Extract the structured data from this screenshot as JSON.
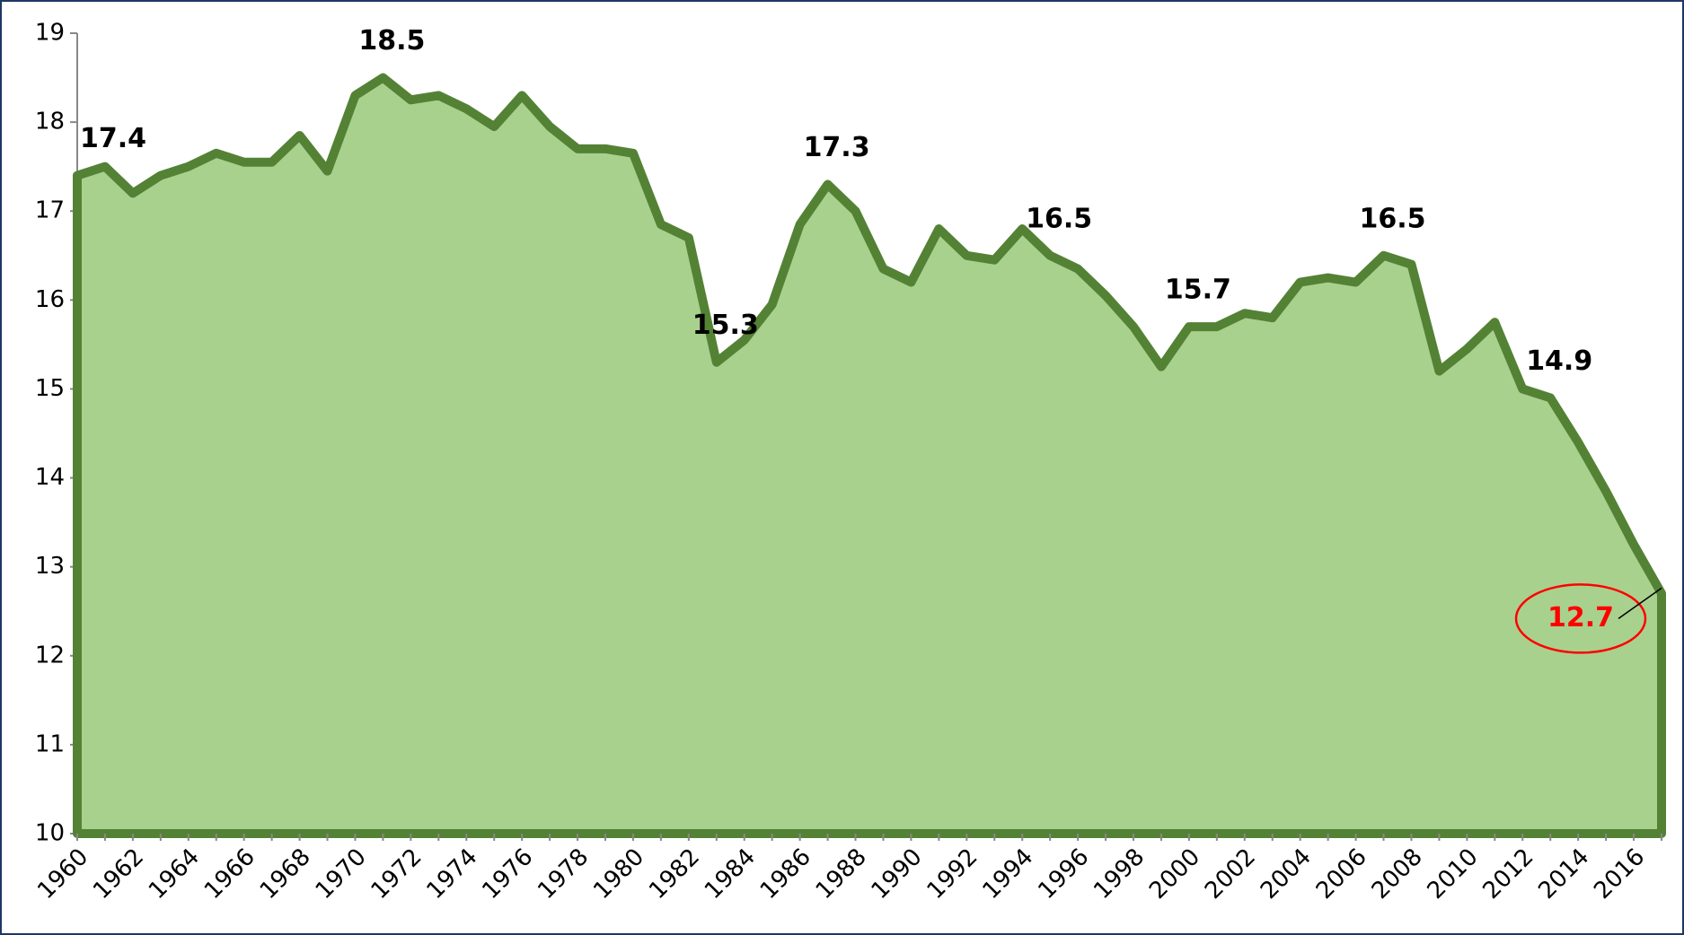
{
  "chart_data": {
    "type": "area",
    "categories": [
      "1960",
      null,
      "1962",
      null,
      "1964",
      null,
      "1966",
      null,
      "1968",
      null,
      "1970",
      null,
      "1972",
      null,
      "1974",
      null,
      "1976",
      null,
      "1978",
      null,
      "1980",
      null,
      "1982",
      null,
      "1984",
      null,
      "1986",
      null,
      "1988",
      null,
      "1990",
      null,
      "1992",
      null,
      "1994",
      null,
      "1996",
      null,
      "1998",
      null,
      "2000",
      null,
      "2002",
      null,
      "2004",
      null,
      "2006",
      null,
      "2008",
      null,
      "2010",
      null,
      "2012",
      null,
      "2014",
      null,
      "2016",
      null
    ],
    "values": [
      17.4,
      17.5,
      17.2,
      17.4,
      17.5,
      17.65,
      17.55,
      17.55,
      17.85,
      17.45,
      18.3,
      18.5,
      18.25,
      18.3,
      18.15,
      17.95,
      18.3,
      17.95,
      17.7,
      17.7,
      17.65,
      16.85,
      16.7,
      15.3,
      15.55,
      15.95,
      16.85,
      17.3,
      17.0,
      16.35,
      16.2,
      16.8,
      16.5,
      16.45,
      16.8,
      16.5,
      16.35,
      16.05,
      15.7,
      15.25,
      15.7,
      15.7,
      15.85,
      15.8,
      16.2,
      16.25,
      16.2,
      16.5,
      16.4,
      15.2,
      15.45,
      15.75,
      15.0,
      14.9,
      14.4,
      13.85,
      13.25,
      12.7
    ],
    "value_labels": [
      "17.4",
      null,
      null,
      null,
      null,
      null,
      null,
      null,
      null,
      null,
      null,
      "18.5",
      null,
      null,
      null,
      null,
      null,
      null,
      null,
      null,
      null,
      null,
      null,
      "15.3",
      null,
      null,
      null,
      "17.3",
      null,
      null,
      null,
      null,
      null,
      null,
      null,
      "16.5",
      null,
      null,
      null,
      null,
      "15.7",
      null,
      null,
      null,
      null,
      null,
      null,
      "16.5",
      null,
      null,
      null,
      null,
      null,
      "14.9",
      null,
      null,
      null,
      "12.7"
    ],
    "color": "#a9d18e",
    "line_color": "#548235",
    "highlight_color": "#ff0000",
    "ylim": [
      10,
      19
    ],
    "yticks": [
      10,
      11,
      12,
      13,
      14,
      15,
      16,
      17,
      18,
      19
    ]
  }
}
